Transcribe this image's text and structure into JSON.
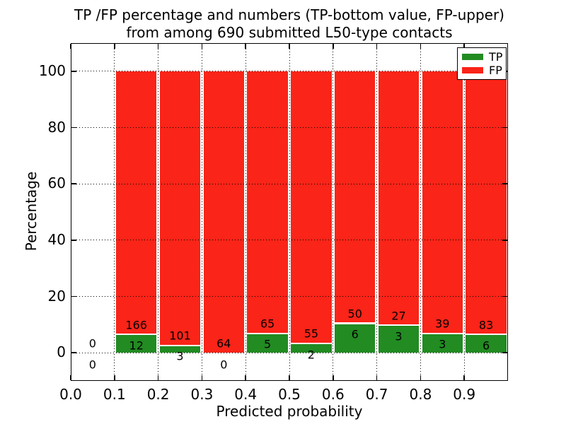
{
  "title": {
    "line1": "TP /FP percentage and numbers (TP-bottom value, FP-upper)",
    "line2": "from among 690 submitted L50-type contacts"
  },
  "axes": {
    "xlabel": "Predicted probability",
    "ylabel": "Percentage",
    "x_tick_labels": [
      "0.0",
      "0.1",
      "0.2",
      "0.3",
      "0.4",
      "0.5",
      "0.6",
      "0.7",
      "0.8",
      "0.9"
    ],
    "y_tick_labels": [
      "0",
      "20",
      "40",
      "60",
      "80",
      "100"
    ]
  },
  "legend": {
    "items": [
      {
        "label": "TP",
        "color": "#228B22"
      },
      {
        "label": "FP",
        "color": "#FA2418"
      }
    ]
  },
  "chart_data": {
    "type": "bar",
    "stacked": true,
    "title": "TP /FP percentage and numbers (TP-bottom value, FP-upper) from among 690 submitted L50-type contacts",
    "total_contacts": 690,
    "xlabel": "Predicted probability",
    "ylabel": "Percentage",
    "xlim": [
      0.0,
      1.0
    ],
    "ylim": [
      -10,
      110
    ],
    "x_ticks": [
      0.0,
      0.1,
      0.2,
      0.3,
      0.4,
      0.5,
      0.6,
      0.7,
      0.8,
      0.9
    ],
    "y_ticks": [
      0,
      20,
      40,
      60,
      80,
      100
    ],
    "grid": true,
    "grid_style": "dotted",
    "legend_position": "upper right",
    "bar_total_pct": 100,
    "series": [
      {
        "name": "TP",
        "color": "#228B22",
        "counts": [
          0,
          12,
          3,
          0,
          5,
          2,
          6,
          3,
          3,
          6
        ],
        "pct": [
          0,
          6.74,
          2.88,
          0,
          7.14,
          3.51,
          10.71,
          10.0,
          7.14,
          6.74
        ]
      },
      {
        "name": "FP",
        "color": "#FA2418",
        "counts": [
          0,
          166,
          101,
          64,
          65,
          55,
          50,
          27,
          39,
          83
        ],
        "pct": [
          0,
          93.26,
          97.12,
          100.0,
          92.86,
          96.49,
          89.29,
          90.0,
          92.86,
          93.26
        ]
      }
    ],
    "bins": [
      {
        "x0": 0.0,
        "x1": 0.1,
        "tp": 0,
        "fp": 0,
        "tp_pct": 0,
        "fp_pct": 0,
        "has_bar": false
      },
      {
        "x0": 0.1,
        "x1": 0.2,
        "tp": 12,
        "fp": 166,
        "tp_pct": 6.74,
        "fp_pct": 93.26,
        "has_bar": true
      },
      {
        "x0": 0.2,
        "x1": 0.3,
        "tp": 3,
        "fp": 101,
        "tp_pct": 2.88,
        "fp_pct": 97.12,
        "has_bar": true
      },
      {
        "x0": 0.3,
        "x1": 0.4,
        "tp": 0,
        "fp": 64,
        "tp_pct": 0.0,
        "fp_pct": 100.0,
        "has_bar": true
      },
      {
        "x0": 0.4,
        "x1": 0.5,
        "tp": 5,
        "fp": 65,
        "tp_pct": 7.14,
        "fp_pct": 92.86,
        "has_bar": true
      },
      {
        "x0": 0.5,
        "x1": 0.6,
        "tp": 2,
        "fp": 55,
        "tp_pct": 3.51,
        "fp_pct": 96.49,
        "has_bar": true
      },
      {
        "x0": 0.6,
        "x1": 0.7,
        "tp": 6,
        "fp": 50,
        "tp_pct": 10.71,
        "fp_pct": 89.29,
        "has_bar": true
      },
      {
        "x0": 0.7,
        "x1": 0.8,
        "tp": 3,
        "fp": 27,
        "tp_pct": 10.0,
        "fp_pct": 90.0,
        "has_bar": true
      },
      {
        "x0": 0.8,
        "x1": 0.9,
        "tp": 3,
        "fp": 39,
        "tp_pct": 7.14,
        "fp_pct": 92.86,
        "has_bar": true
      },
      {
        "x0": 0.9,
        "x1": 1.0,
        "tp": 6,
        "fp": 83,
        "tp_pct": 6.74,
        "fp_pct": 93.26,
        "has_bar": true
      }
    ]
  }
}
